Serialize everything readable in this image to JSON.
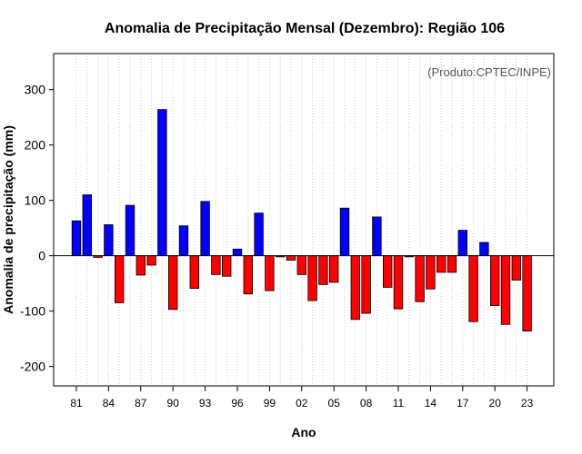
{
  "chart_data": {
    "type": "bar",
    "title": "Anomalia de Precipitação Mensal (Dezembro): Região 106",
    "xlabel": "Ano",
    "ylabel": "Anomalia de precipitação (mm)",
    "credit": "(Produto:CPTEC/INPE)",
    "ylim": [
      -235,
      365
    ],
    "yticks": [
      -200,
      -100,
      0,
      100,
      200,
      300
    ],
    "grid": "vertical-dotted",
    "colors": {
      "positive": "#0000ff",
      "negative": "#ff0000",
      "zero_line": "#000000"
    },
    "x": [
      1981,
      1982,
      1983,
      1984,
      1985,
      1986,
      1987,
      1988,
      1989,
      1990,
      1991,
      1992,
      1993,
      1994,
      1995,
      1996,
      1997,
      1998,
      1999,
      2000,
      2001,
      2002,
      2003,
      2004,
      2005,
      2006,
      2007,
      2008,
      2009,
      2010,
      2011,
      2012,
      2013,
      2014,
      2015,
      2016,
      2017,
      2018,
      2019,
      2020,
      2021,
      2022,
      2023
    ],
    "values": [
      63,
      110,
      -3,
      56,
      -85,
      91,
      -35,
      -17,
      264,
      -97,
      54,
      -59,
      98,
      -34,
      -37,
      12,
      -69,
      77,
      -63,
      -2,
      -8,
      -34,
      -81,
      -52,
      -48,
      86,
      -115,
      -104,
      70,
      -57,
      -96,
      -2,
      -83,
      -60,
      -30,
      -30,
      46,
      -119,
      24,
      -90,
      -124,
      -44,
      -136
    ],
    "xtick_labels": [
      "81",
      "84",
      "87",
      "90",
      "93",
      "96",
      "99",
      "02",
      "05",
      "08",
      "11",
      "14",
      "17",
      "20",
      "23"
    ]
  }
}
